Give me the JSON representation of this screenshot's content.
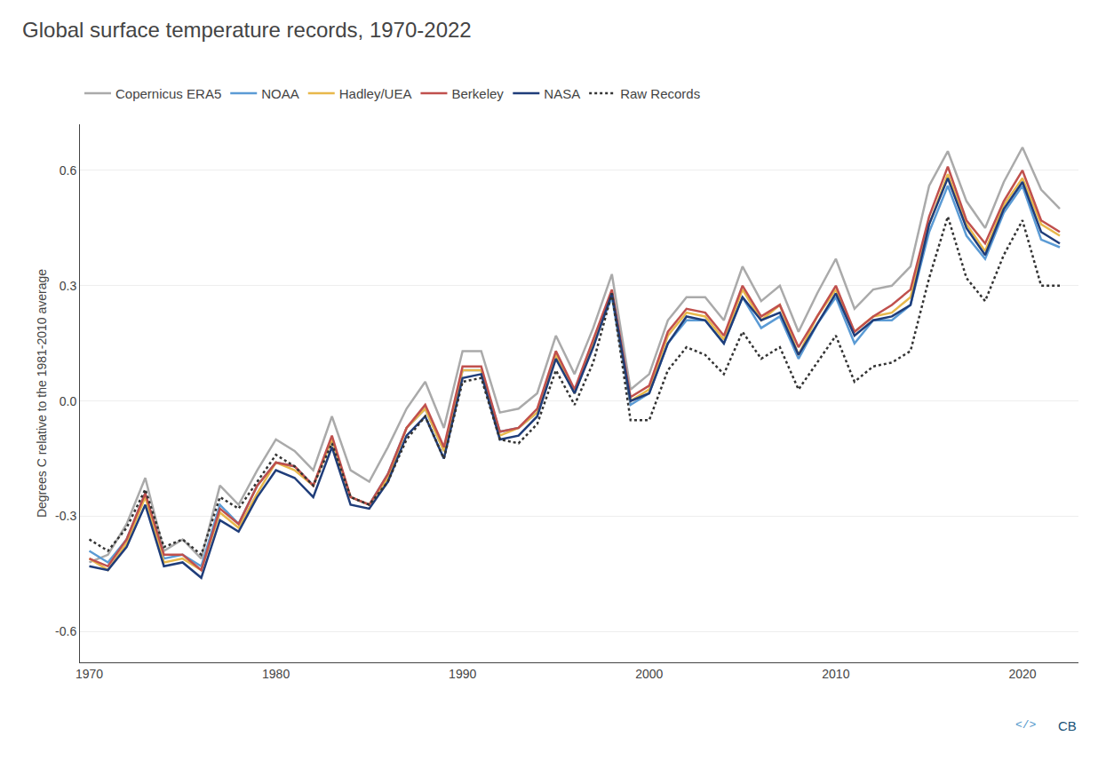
{
  "chart_data": {
    "type": "line",
    "title": "Global surface temperature records, 1970-2022",
    "ylabel": "Degrees C relative to the 1981-2010 average",
    "x": [
      1970,
      1971,
      1972,
      1973,
      1974,
      1975,
      1976,
      1977,
      1978,
      1979,
      1980,
      1981,
      1982,
      1983,
      1984,
      1985,
      1986,
      1987,
      1988,
      1989,
      1990,
      1991,
      1992,
      1993,
      1994,
      1995,
      1996,
      1997,
      1998,
      1999,
      2000,
      2001,
      2002,
      2003,
      2004,
      2005,
      2006,
      2007,
      2008,
      2009,
      2010,
      2011,
      2012,
      2013,
      2014,
      2015,
      2016,
      2017,
      2018,
      2019,
      2020,
      2021,
      2022
    ],
    "series": [
      {
        "name": "Copernicus ERA5",
        "color": "#aaaaaa",
        "values": [
          -0.42,
          -0.4,
          -0.32,
          -0.2,
          -0.39,
          -0.36,
          -0.41,
          -0.22,
          -0.27,
          -0.18,
          -0.1,
          -0.13,
          -0.18,
          -0.04,
          -0.18,
          -0.21,
          -0.12,
          -0.02,
          0.05,
          -0.07,
          0.13,
          0.13,
          -0.03,
          -0.02,
          0.02,
          0.17,
          0.07,
          0.19,
          0.33,
          0.03,
          0.07,
          0.21,
          0.27,
          0.27,
          0.21,
          0.35,
          0.26,
          0.3,
          0.18,
          0.28,
          0.37,
          0.24,
          0.29,
          0.3,
          0.35,
          0.56,
          0.65,
          0.52,
          0.45,
          0.57,
          0.66,
          0.55,
          0.5
        ]
      },
      {
        "name": "NOAA",
        "color": "#5b9bd5",
        "values": [
          -0.39,
          -0.42,
          -0.36,
          -0.24,
          -0.41,
          -0.4,
          -0.43,
          -0.27,
          -0.32,
          -0.22,
          -0.16,
          -0.17,
          -0.22,
          -0.1,
          -0.25,
          -0.27,
          -0.19,
          -0.07,
          -0.02,
          -0.13,
          0.08,
          0.08,
          -0.08,
          -0.07,
          -0.03,
          0.12,
          0.02,
          0.15,
          0.27,
          -0.01,
          0.02,
          0.15,
          0.21,
          0.21,
          0.15,
          0.27,
          0.19,
          0.22,
          0.11,
          0.2,
          0.27,
          0.15,
          0.21,
          0.21,
          0.25,
          0.44,
          0.56,
          0.43,
          0.37,
          0.49,
          0.56,
          0.42,
          0.4
        ]
      },
      {
        "name": "Hadley/UEA",
        "color": "#e8b84b",
        "values": [
          -0.41,
          -0.44,
          -0.37,
          -0.25,
          -0.42,
          -0.41,
          -0.44,
          -0.29,
          -0.33,
          -0.24,
          -0.16,
          -0.18,
          -0.22,
          -0.1,
          -0.25,
          -0.27,
          -0.2,
          -0.07,
          -0.02,
          -0.13,
          0.08,
          0.08,
          -0.09,
          -0.07,
          -0.03,
          0.12,
          0.02,
          0.15,
          0.28,
          0.0,
          0.03,
          0.17,
          0.23,
          0.22,
          0.16,
          0.29,
          0.21,
          0.25,
          0.12,
          0.22,
          0.29,
          0.18,
          0.22,
          0.23,
          0.27,
          0.46,
          0.59,
          0.46,
          0.39,
          0.51,
          0.58,
          0.46,
          0.43
        ]
      },
      {
        "name": "Berkeley",
        "color": "#c0504d",
        "values": [
          -0.41,
          -0.43,
          -0.36,
          -0.24,
          -0.4,
          -0.4,
          -0.44,
          -0.28,
          -0.32,
          -0.22,
          -0.16,
          -0.17,
          -0.22,
          -0.09,
          -0.25,
          -0.27,
          -0.19,
          -0.07,
          -0.01,
          -0.12,
          0.09,
          0.09,
          -0.08,
          -0.07,
          -0.02,
          0.13,
          0.03,
          0.16,
          0.29,
          0.01,
          0.04,
          0.18,
          0.24,
          0.23,
          0.17,
          0.3,
          0.22,
          0.25,
          0.14,
          0.22,
          0.3,
          0.18,
          0.22,
          0.25,
          0.29,
          0.48,
          0.61,
          0.47,
          0.41,
          0.52,
          0.6,
          0.47,
          0.44
        ]
      },
      {
        "name": "NASA",
        "color": "#1f3d7a",
        "values": [
          -0.43,
          -0.44,
          -0.38,
          -0.27,
          -0.43,
          -0.42,
          -0.46,
          -0.31,
          -0.34,
          -0.25,
          -0.18,
          -0.2,
          -0.25,
          -0.12,
          -0.27,
          -0.28,
          -0.21,
          -0.09,
          -0.04,
          -0.15,
          0.06,
          0.07,
          -0.1,
          -0.09,
          -0.04,
          0.11,
          0.02,
          0.14,
          0.28,
          0.0,
          0.02,
          0.15,
          0.22,
          0.21,
          0.15,
          0.27,
          0.21,
          0.23,
          0.12,
          0.2,
          0.28,
          0.17,
          0.21,
          0.22,
          0.25,
          0.46,
          0.58,
          0.45,
          0.38,
          0.5,
          0.57,
          0.44,
          0.41
        ]
      },
      {
        "name": "Raw Records",
        "color": "#333333",
        "line_style": "dotted",
        "values": [
          -0.36,
          -0.39,
          -0.33,
          -0.23,
          -0.38,
          -0.36,
          -0.4,
          -0.25,
          -0.28,
          -0.21,
          -0.14,
          -0.17,
          -0.22,
          -0.11,
          -0.25,
          -0.27,
          -0.21,
          -0.1,
          -0.04,
          -0.15,
          0.05,
          0.06,
          -0.1,
          -0.11,
          -0.06,
          0.08,
          -0.01,
          0.1,
          0.28,
          -0.05,
          -0.05,
          0.08,
          0.14,
          0.12,
          0.07,
          0.18,
          0.11,
          0.14,
          0.03,
          0.1,
          0.17,
          0.05,
          0.09,
          0.1,
          0.13,
          0.32,
          0.48,
          0.32,
          0.26,
          0.38,
          0.47,
          0.3,
          0.3
        ]
      }
    ],
    "xlim": [
      1969.5,
      2023.0
    ],
    "xticks": [
      1970,
      1980,
      1990,
      2000,
      2010,
      2020
    ],
    "ylim": [
      -0.68,
      0.72
    ],
    "yticks": [
      -0.6,
      -0.3,
      {
        "value": 0,
        "label": "0.0"
      },
      0.3,
      0.6
    ],
    "grid": "y",
    "legend": "upper left",
    "annotations": [
      {
        "text": "</>",
        "color": "#5599cc"
      },
      {
        "text": "CB",
        "color": "#1a5276"
      }
    ]
  }
}
